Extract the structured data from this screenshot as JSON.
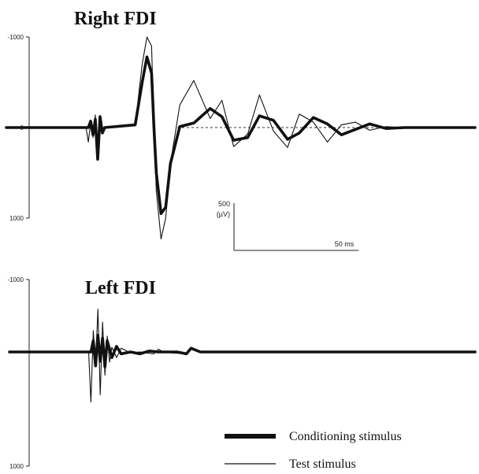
{
  "chart_data": [
    {
      "type": "line",
      "title": "Right FDI",
      "xlabel": "",
      "ylabel": "",
      "y_ticks": [
        "-1000",
        "0",
        "1000"
      ],
      "ylim": [
        -1350,
        1450
      ],
      "xlim": [
        0,
        200
      ],
      "x_units": "ms",
      "y_units": "µV",
      "note": "y axis inverted: negative values plotted upward",
      "scale_bar": {
        "amplitude_label": "500",
        "unit_label": "(µV)",
        "time_label": "50 ms",
        "amplitude": 500,
        "time": 50
      },
      "series": [
        {
          "name": "Conditioning stimulus",
          "x": [
            0,
            35,
            36,
            37,
            38,
            39,
            40,
            41,
            42,
            55,
            58,
            60,
            62,
            63,
            64,
            66,
            68,
            70,
            74,
            80,
            87,
            92,
            97,
            103,
            108,
            114,
            120,
            125,
            131,
            137,
            143,
            149,
            155,
            162,
            170,
            200
          ],
          "y": [
            0,
            0,
            -70,
            80,
            -90,
            350,
            -120,
            60,
            0,
            -30,
            -500,
            -780,
            -600,
            0,
            500,
            950,
            880,
            400,
            -10,
            -50,
            -210,
            -120,
            140,
            110,
            -130,
            -80,
            130,
            60,
            -110,
            -40,
            80,
            20,
            -40,
            10,
            0,
            0
          ]
        },
        {
          "name": "Test stimulus",
          "x": [
            0,
            34,
            35,
            36,
            37,
            38,
            39,
            40,
            41,
            42,
            55,
            58,
            60,
            62,
            63,
            64,
            66,
            68,
            70,
            74,
            80,
            87,
            92,
            97,
            103,
            108,
            114,
            120,
            125,
            131,
            137,
            143,
            149,
            155,
            162,
            170,
            200
          ],
          "y": [
            0,
            0,
            160,
            -60,
            110,
            -140,
            280,
            -60,
            20,
            0,
            -30,
            -700,
            -1000,
            -900,
            0,
            700,
            1230,
            1000,
            400,
            -250,
            -520,
            -100,
            -300,
            210,
            70,
            -360,
            40,
            220,
            -150,
            -60,
            160,
            -30,
            -60,
            30,
            -10,
            0,
            0
          ]
        }
      ]
    },
    {
      "type": "line",
      "title": "Left FDI",
      "xlabel": "",
      "ylabel": "",
      "y_ticks": [
        "-1000",
        "0",
        "1000"
      ],
      "ylim": [
        -1000,
        1000
      ],
      "xlim": [
        0,
        200
      ],
      "series": [
        {
          "name": "Conditioning stimulus",
          "x": [
            0,
            35,
            36,
            37,
            38,
            39,
            40,
            41,
            42,
            44,
            46,
            48,
            52,
            56,
            60,
            64,
            72,
            76,
            78,
            82,
            200
          ],
          "y": [
            0,
            0,
            -120,
            150,
            -180,
            100,
            -150,
            160,
            -120,
            60,
            -60,
            20,
            0,
            20,
            -10,
            0,
            0,
            20,
            -40,
            0,
            0
          ]
        },
        {
          "name": "Test stimulus",
          "x": [
            0,
            34,
            35,
            36,
            37,
            38,
            39,
            40,
            41,
            42,
            43,
            44,
            46,
            48,
            52,
            56,
            62,
            64,
            66,
            70,
            76,
            78,
            82,
            200
          ],
          "y": [
            0,
            0,
            540,
            -230,
            130,
            -460,
            460,
            -320,
            250,
            -170,
            110,
            -50,
            60,
            -40,
            10,
            0,
            20,
            -30,
            0,
            10,
            20,
            -40,
            0,
            0
          ]
        }
      ]
    }
  ],
  "legend": {
    "items": [
      {
        "label": "Conditioning stimulus",
        "style": "thick"
      },
      {
        "label": "Test stimulus",
        "style": "thin"
      }
    ]
  }
}
